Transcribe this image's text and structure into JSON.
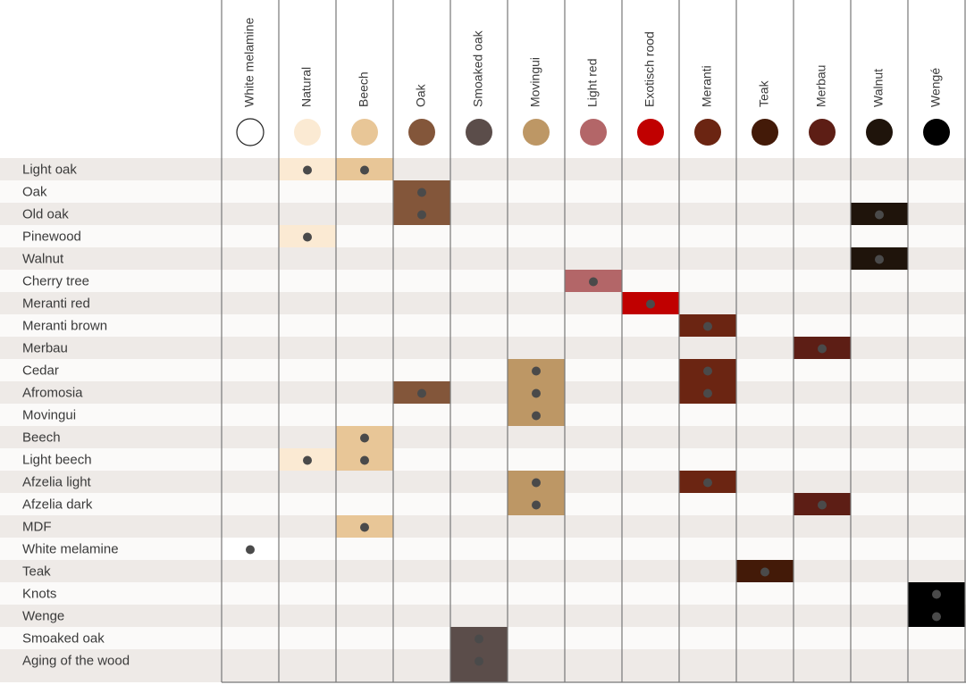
{
  "columns": [
    {
      "name": "White melamine",
      "color": "#ffffff",
      "stroke": "#222222"
    },
    {
      "name": "Natural",
      "color": "#fbead3"
    },
    {
      "name": "Beech",
      "color": "#e8c697"
    },
    {
      "name": "Oak",
      "color": "#83563a"
    },
    {
      "name": "Smoaked oak",
      "color": "#5b4d4a"
    },
    {
      "name": "Movingui",
      "color": "#bd9765"
    },
    {
      "name": "Light red",
      "color": "#b36668"
    },
    {
      "name": "Exotisch rood",
      "color": "#c00000"
    },
    {
      "name": "Meranti",
      "color": "#6b2512"
    },
    {
      "name": "Teak",
      "color": "#431a08"
    },
    {
      "name": "Merbau",
      "color": "#5d1e15"
    },
    {
      "name": "Walnut",
      "color": "#1f140b"
    },
    {
      "name": "Wengé",
      "color": "#000000"
    }
  ],
  "rows": [
    {
      "name": "Light oak",
      "marks": [
        1,
        2
      ]
    },
    {
      "name": "Oak",
      "marks": [
        3
      ]
    },
    {
      "name": "Old oak",
      "marks": [
        3,
        11
      ]
    },
    {
      "name": "Pinewood",
      "marks": [
        1
      ]
    },
    {
      "name": "Walnut",
      "marks": [
        11
      ]
    },
    {
      "name": "Cherry tree",
      "marks": [
        6
      ]
    },
    {
      "name": "Meranti red",
      "marks": [
        7
      ]
    },
    {
      "name": "Meranti brown",
      "marks": [
        8
      ]
    },
    {
      "name": "Merbau",
      "marks": [
        10
      ]
    },
    {
      "name": "Cedar",
      "marks": [
        5,
        8
      ]
    },
    {
      "name": "Afromosia",
      "marks": [
        3,
        5,
        8
      ]
    },
    {
      "name": "Movingui",
      "marks": [
        5
      ]
    },
    {
      "name": "Beech",
      "marks": [
        2
      ]
    },
    {
      "name": "Light beech",
      "marks": [
        1,
        2
      ]
    },
    {
      "name": "Afzelia light",
      "marks": [
        5,
        8
      ]
    },
    {
      "name": "Afzelia dark",
      "marks": [
        5,
        10
      ]
    },
    {
      "name": "MDF",
      "marks": [
        2
      ]
    },
    {
      "name": "White melamine",
      "marks": [
        0
      ]
    },
    {
      "name": "Teak",
      "marks": [
        9
      ]
    },
    {
      "name": "Knots",
      "marks": [
        12
      ]
    },
    {
      "name": "Wenge",
      "marks": [
        12
      ]
    },
    {
      "name": "Smoaked oak",
      "marks": [
        4
      ]
    },
    {
      "name": "Aging of the wood",
      "marks": [
        4
      ]
    }
  ],
  "colors": {
    "row_even": "#eeeae7",
    "row_odd": "#fbfaf9",
    "grid_line": "#777777",
    "dot": "#4a4a4a"
  }
}
